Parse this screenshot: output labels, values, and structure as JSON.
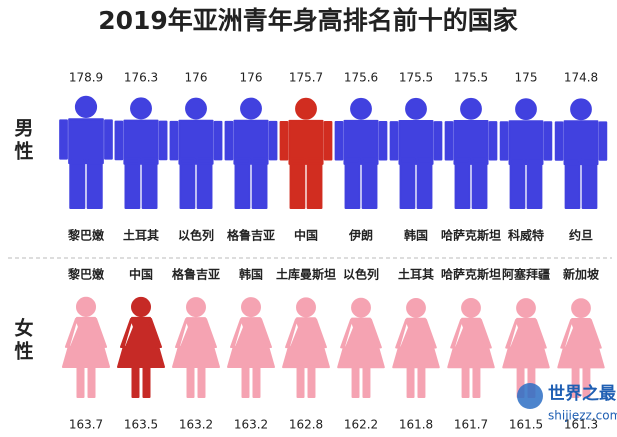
{
  "title": "2019年亚洲青年身高排名前十的国家",
  "watermark": {
    "name": "世界之最",
    "url": "shijiezz.com"
  },
  "chart_data": [
    {
      "type": "pictograph",
      "label": "男性",
      "categories": [
        "黎巴嫩",
        "土耳其",
        "以色列",
        "格鲁吉亚",
        "中国",
        "伊朗",
        "韩国",
        "哈萨克斯坦",
        "科威特",
        "约旦"
      ],
      "values": [
        178.9,
        176.3,
        176,
        176,
        175.7,
        175.6,
        175.5,
        175.5,
        175,
        174.8
      ],
      "colors": [
        "#4141df",
        "#4141df",
        "#4141df",
        "#4141df",
        "#d12d20",
        "#4141df",
        "#4141df",
        "#4141df",
        "#4141df",
        "#4141df"
      ],
      "ylim": [
        0,
        180
      ],
      "figure": "male"
    },
    {
      "type": "pictograph",
      "label": "女性",
      "categories": [
        "黎巴嫩",
        "中国",
        "格鲁吉亚",
        "韩国",
        "土库曼斯坦",
        "以色列",
        "土耳其",
        "哈萨克斯坦",
        "阿塞拜疆",
        "新加坡"
      ],
      "values": [
        163.7,
        163.5,
        163.2,
        163.2,
        162.8,
        162.2,
        161.8,
        161.7,
        161.5,
        161.3
      ],
      "colors": [
        "#f5a3b2",
        "#c62a26",
        "#f5a3b2",
        "#f5a3b2",
        "#f5a3b2",
        "#f5a3b2",
        "#f5a3b2",
        "#f5a3b2",
        "#f5a3b2",
        "#f5a3b2"
      ],
      "ylim": [
        0,
        165
      ],
      "figure": "female"
    }
  ]
}
